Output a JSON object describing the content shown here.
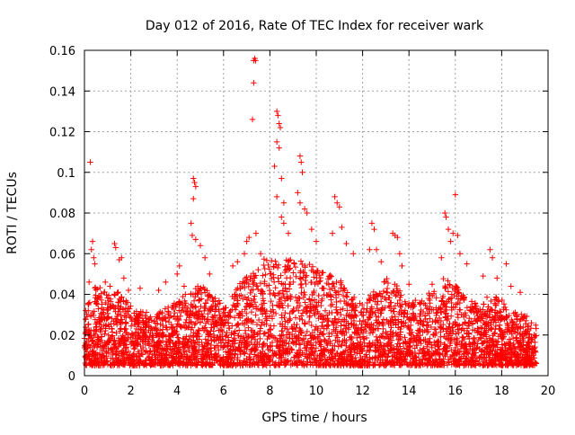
{
  "chart_data": {
    "type": "scatter",
    "title": "Day 012 of 2016, Rate Of TEC Index for receiver wark",
    "xlabel": "GPS time / hours",
    "ylabel": "ROTI / TECUs",
    "xlim": [
      0,
      20
    ],
    "ylim": [
      0,
      0.16
    ],
    "x_ticks": [
      0,
      2,
      4,
      6,
      8,
      10,
      12,
      14,
      16,
      18,
      20
    ],
    "y_ticks": [
      0,
      0.02,
      0.04,
      0.06,
      0.08,
      0.1,
      0.12,
      0.14,
      0.16
    ],
    "x_tick_labels": [
      "0",
      "2",
      "4",
      "6",
      "8",
      "10",
      "12",
      "14",
      "16",
      "18",
      "20"
    ],
    "y_tick_labels": [
      "0",
      "0.02",
      "0.04",
      "0.06",
      "0.08",
      "0.1",
      "0.12",
      "0.14",
      "0.16"
    ],
    "grid": true,
    "marker": "plus",
    "color": "#ff0000",
    "data_extent_hours": [
      0,
      19.5
    ],
    "envelope": {
      "description": "approximate upper extent of dense points per hour",
      "hours": [
        0,
        0.5,
        1,
        1.5,
        2,
        2.5,
        3,
        3.5,
        4,
        4.5,
        5,
        5.5,
        6,
        6.5,
        7,
        7.5,
        8,
        8.5,
        9,
        9.5,
        10,
        10.5,
        11,
        11.5,
        12,
        12.5,
        13,
        13.5,
        14,
        14.5,
        15,
        15.5,
        16,
        16.5,
        17,
        17.5,
        18,
        18.5,
        19,
        19.5
      ],
      "upper": [
        0.035,
        0.045,
        0.04,
        0.043,
        0.035,
        0.032,
        0.03,
        0.033,
        0.037,
        0.042,
        0.045,
        0.04,
        0.035,
        0.042,
        0.05,
        0.055,
        0.06,
        0.055,
        0.06,
        0.058,
        0.052,
        0.05,
        0.048,
        0.04,
        0.035,
        0.042,
        0.048,
        0.045,
        0.036,
        0.038,
        0.042,
        0.048,
        0.045,
        0.038,
        0.035,
        0.04,
        0.038,
        0.032,
        0.03,
        0.025
      ]
    },
    "outliers": [
      [
        0.05,
        0.032
      ],
      [
        0.2,
        0.046
      ],
      [
        0.25,
        0.105
      ],
      [
        0.3,
        0.062
      ],
      [
        0.35,
        0.066
      ],
      [
        0.4,
        0.058
      ],
      [
        0.45,
        0.055
      ],
      [
        0.9,
        0.046
      ],
      [
        1.1,
        0.044
      ],
      [
        1.3,
        0.065
      ],
      [
        1.35,
        0.063
      ],
      [
        1.5,
        0.057
      ],
      [
        1.6,
        0.058
      ],
      [
        1.7,
        0.048
      ],
      [
        1.9,
        0.042
      ],
      [
        2.4,
        0.043
      ],
      [
        3.2,
        0.042
      ],
      [
        3.5,
        0.046
      ],
      [
        4.0,
        0.05
      ],
      [
        4.1,
        0.054
      ],
      [
        4.3,
        0.044
      ],
      [
        4.7,
        0.097
      ],
      [
        4.75,
        0.095
      ],
      [
        4.8,
        0.093
      ],
      [
        4.7,
        0.087
      ],
      [
        4.6,
        0.075
      ],
      [
        4.65,
        0.069
      ],
      [
        4.8,
        0.067
      ],
      [
        5.0,
        0.064
      ],
      [
        5.2,
        0.058
      ],
      [
        5.4,
        0.05
      ],
      [
        6.4,
        0.054
      ],
      [
        6.6,
        0.056
      ],
      [
        6.9,
        0.06
      ],
      [
        7.0,
        0.066
      ],
      [
        7.1,
        0.068
      ],
      [
        7.3,
        0.155
      ],
      [
        7.35,
        0.156
      ],
      [
        7.38,
        0.155
      ],
      [
        7.3,
        0.144
      ],
      [
        7.25,
        0.126
      ],
      [
        7.4,
        0.07
      ],
      [
        7.6,
        0.06
      ],
      [
        8.2,
        0.103
      ],
      [
        8.3,
        0.13
      ],
      [
        8.35,
        0.128
      ],
      [
        8.4,
        0.124
      ],
      [
        8.45,
        0.122
      ],
      [
        8.3,
        0.115
      ],
      [
        8.4,
        0.112
      ],
      [
        8.5,
        0.097
      ],
      [
        8.3,
        0.088
      ],
      [
        8.6,
        0.085
      ],
      [
        8.5,
        0.078
      ],
      [
        8.6,
        0.075
      ],
      [
        8.8,
        0.07
      ],
      [
        9.3,
        0.108
      ],
      [
        9.35,
        0.105
      ],
      [
        9.4,
        0.1
      ],
      [
        9.2,
        0.09
      ],
      [
        9.3,
        0.085
      ],
      [
        9.5,
        0.082
      ],
      [
        9.6,
        0.08
      ],
      [
        9.8,
        0.072
      ],
      [
        10.0,
        0.066
      ],
      [
        10.8,
        0.088
      ],
      [
        10.9,
        0.085
      ],
      [
        11.0,
        0.083
      ],
      [
        11.1,
        0.073
      ],
      [
        10.7,
        0.07
      ],
      [
        11.3,
        0.065
      ],
      [
        11.6,
        0.06
      ],
      [
        12.3,
        0.062
      ],
      [
        12.4,
        0.075
      ],
      [
        12.5,
        0.072
      ],
      [
        12.6,
        0.062
      ],
      [
        12.8,
        0.056
      ],
      [
        13.3,
        0.07
      ],
      [
        13.4,
        0.069
      ],
      [
        13.5,
        0.068
      ],
      [
        13.6,
        0.06
      ],
      [
        13.7,
        0.054
      ],
      [
        14.0,
        0.045
      ],
      [
        15.0,
        0.045
      ],
      [
        15.4,
        0.058
      ],
      [
        15.55,
        0.08
      ],
      [
        15.6,
        0.078
      ],
      [
        15.7,
        0.072
      ],
      [
        15.8,
        0.066
      ],
      [
        15.9,
        0.07
      ],
      [
        16.0,
        0.089
      ],
      [
        16.1,
        0.069
      ],
      [
        16.2,
        0.06
      ],
      [
        16.5,
        0.055
      ],
      [
        17.2,
        0.049
      ],
      [
        17.5,
        0.062
      ],
      [
        17.6,
        0.058
      ],
      [
        17.8,
        0.048
      ],
      [
        18.2,
        0.055
      ],
      [
        18.4,
        0.044
      ],
      [
        18.8,
        0.041
      ]
    ]
  }
}
